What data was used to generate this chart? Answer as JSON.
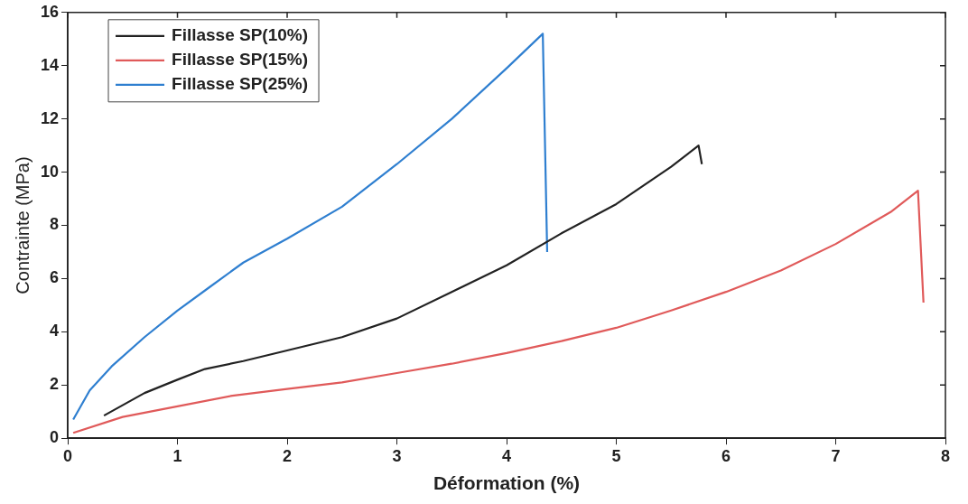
{
  "chart_data": {
    "type": "line",
    "xlabel": "Déformation (%)",
    "ylabel": "Contrainte (MPa)",
    "xlim": [
      0,
      8
    ],
    "xticks": [
      0,
      1,
      2,
      3,
      4,
      5,
      6,
      7,
      8
    ],
    "ylim": [
      0,
      16
    ],
    "yticks": [
      0,
      2,
      4,
      6,
      8,
      10,
      12,
      14,
      16
    ],
    "grid": false,
    "legend": "top left",
    "marker": "none",
    "line_style": "solid",
    "series": [
      {
        "name": "Fillasse SP(10%)",
        "color": "#222222",
        "x": [
          0.33,
          0.7,
          1.0,
          1.25,
          1.6,
          2.0,
          2.5,
          3.0,
          3.5,
          4.0,
          4.5,
          5.0,
          5.5,
          5.75,
          5.78
        ],
        "values": [
          0.85,
          1.7,
          2.2,
          2.6,
          2.9,
          3.3,
          3.8,
          4.5,
          5.5,
          6.5,
          7.7,
          8.8,
          10.2,
          11.0,
          10.3
        ]
      },
      {
        "name": "Fillasse SP(15%)",
        "color": "#e05a5a",
        "x": [
          0.05,
          0.5,
          1.0,
          1.5,
          2.0,
          2.5,
          3.0,
          3.5,
          4.0,
          4.5,
          5.0,
          5.5,
          6.0,
          6.5,
          7.0,
          7.5,
          7.75,
          7.8
        ],
        "values": [
          0.2,
          0.8,
          1.2,
          1.6,
          1.85,
          2.1,
          2.45,
          2.8,
          3.2,
          3.65,
          4.15,
          4.8,
          5.5,
          6.3,
          7.3,
          8.5,
          9.3,
          5.1
        ]
      },
      {
        "name": "Fillasse SP(25%)",
        "color": "#2f7fd0",
        "x": [
          0.05,
          0.2,
          0.4,
          0.7,
          1.0,
          1.3,
          1.6,
          2.0,
          2.5,
          3.0,
          3.5,
          4.0,
          4.33,
          4.37
        ],
        "values": [
          0.7,
          1.8,
          2.7,
          3.8,
          4.8,
          5.7,
          6.6,
          7.5,
          8.7,
          10.3,
          12.0,
          13.9,
          15.2,
          7.0
        ]
      }
    ]
  }
}
